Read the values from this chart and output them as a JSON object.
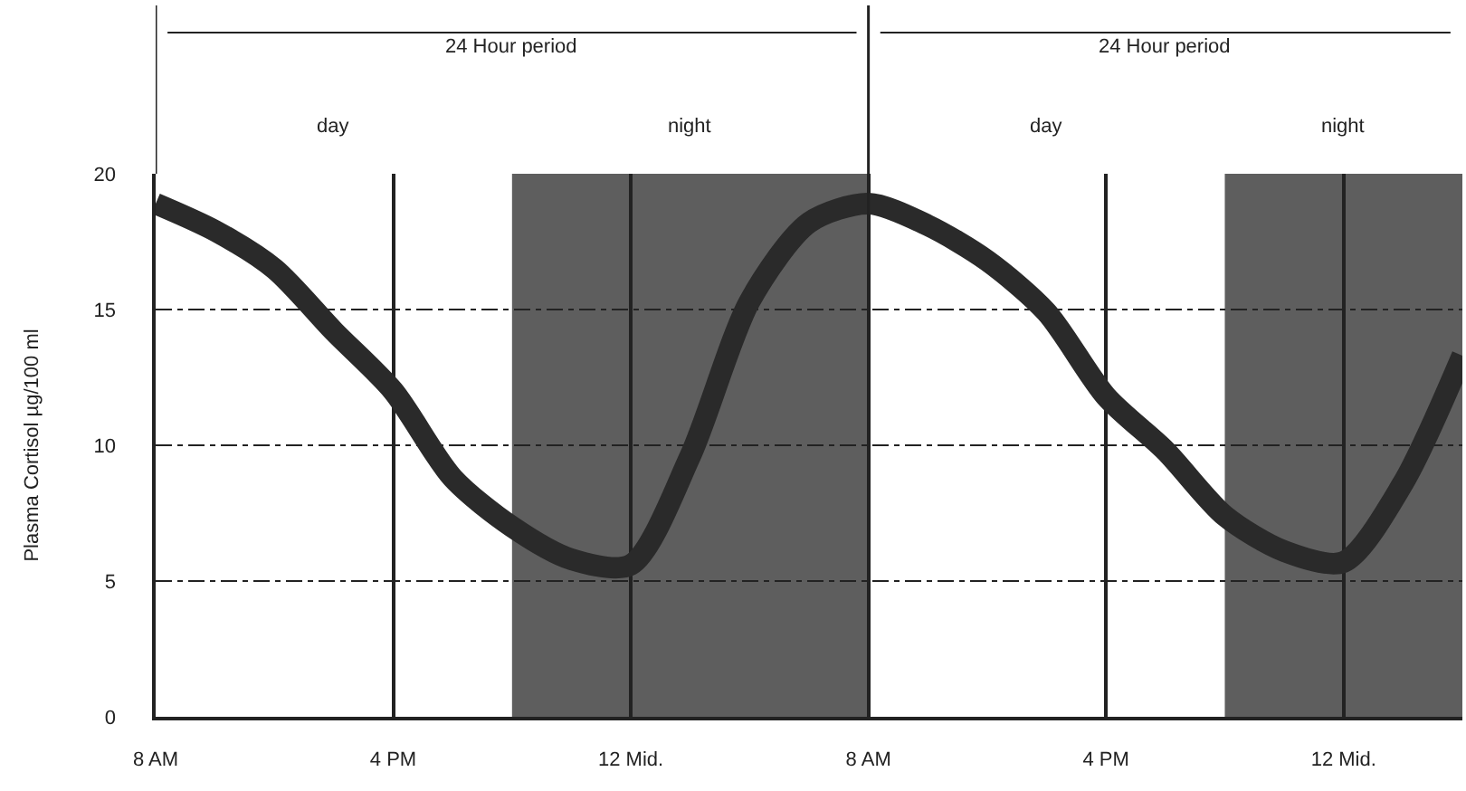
{
  "chart_data": {
    "type": "line",
    "ylabel": "Plasma Cortisol µg/100 ml",
    "categories": [
      "8 AM",
      null,
      null,
      null,
      "4 PM",
      null,
      null,
      null,
      "12 Mid.",
      null,
      null,
      null,
      "8 AM",
      null,
      null,
      null,
      "4 PM",
      null,
      null,
      null,
      "12 Mid.",
      null,
      null
    ],
    "series": [
      {
        "color": "#2a2a2a",
        "values": [
          18.9,
          17.9,
          16.5,
          14.2,
          12.0,
          8.8,
          7.0,
          5.8,
          5.6,
          9.6,
          15.3,
          18.2,
          18.9,
          18.1,
          16.8,
          14.9,
          11.8,
          9.8,
          7.4,
          6.1,
          5.7,
          8.6,
          13.3
        ]
      }
    ],
    "ylim": [
      0,
      20
    ],
    "yticks": [
      0,
      5,
      10,
      15,
      20
    ],
    "grid": true,
    "legend": false,
    "marker": "none",
    "line_style": "solid",
    "annotations": [
      "24 Hour period",
      "day",
      "night",
      "24 Hour period",
      "day",
      "night"
    ]
  }
}
